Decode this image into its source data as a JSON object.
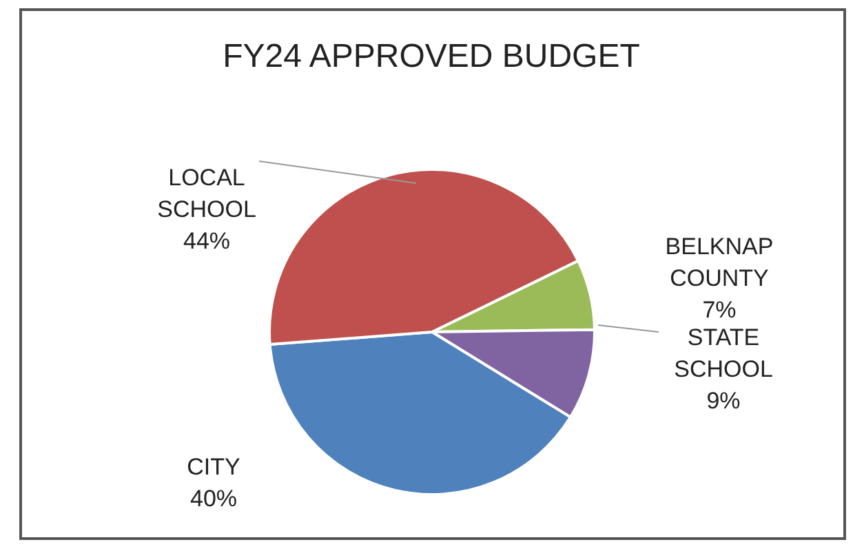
{
  "chart_data": {
    "type": "pie",
    "title": "FY24 APPROVED BUDGET",
    "categories": [
      "BELKNAP COUNTY",
      "STATE SCHOOL",
      "CITY",
      "LOCAL SCHOOL"
    ],
    "values": [
      7,
      9,
      40,
      44
    ],
    "colors": [
      "#9bbb59",
      "#8064a2",
      "#4f81bd",
      "#c0504d"
    ],
    "value_labels": [
      "7%",
      "9%",
      "40%",
      "44%"
    ],
    "legend": false
  }
}
